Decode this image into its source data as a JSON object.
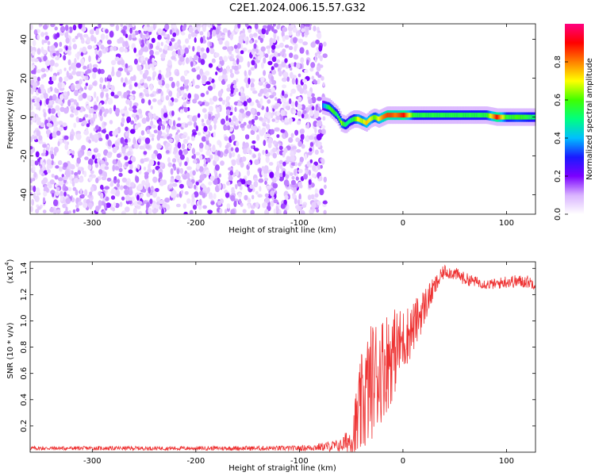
{
  "figure_title": "C2E1.2024.006.15.57.G32",
  "chart_data": [
    {
      "type": "heatmap",
      "xlabel": "Height of straight line (km)",
      "ylabel": "Frequency (Hz)",
      "xlim": [
        -360,
        128
      ],
      "ylim": [
        -50,
        48
      ],
      "x_ticks": [
        -300,
        -200,
        -100,
        0,
        100
      ],
      "y_ticks": [
        -40,
        -20,
        0,
        20,
        40
      ],
      "colorbar": {
        "label": "Normalized spectral amplitude",
        "range": [
          0,
          1
        ],
        "ticks": [
          0.0,
          0.2,
          0.4,
          0.6,
          0.8
        ],
        "tick_labels": [
          "0.0",
          "0.2",
          "0.4",
          "0.6",
          "0.8"
        ],
        "colormap": [
          "#ffffff",
          "#d9b3ff",
          "#7b00ff",
          "#1a1aff",
          "#00bfff",
          "#00ff80",
          "#40ff00",
          "#ffff00",
          "#ff8000",
          "#ff0000",
          "#ff0080"
        ]
      },
      "noise_region_x": [
        -360,
        -75
      ],
      "signal_track": {
        "x": [
          -78,
          -72,
          -68,
          -64,
          -60,
          -56,
          -52,
          -48,
          -44,
          -40,
          -36,
          -32,
          -28,
          -24,
          -20,
          -16,
          -12,
          -8,
          -4,
          0,
          10,
          20,
          30,
          40,
          50,
          60,
          70,
          80,
          90,
          100,
          110,
          120,
          128
        ],
        "freq": [
          6,
          5,
          3,
          1,
          -3,
          -4,
          -2,
          -1,
          -1,
          -2,
          -3,
          -1,
          0,
          -1,
          0,
          1,
          1,
          1,
          1,
          1,
          1,
          1,
          1,
          1,
          1,
          1,
          1,
          1,
          0,
          0,
          0,
          0,
          0
        ],
        "amplitude": [
          0.35,
          0.55,
          0.6,
          0.5,
          0.65,
          0.5,
          0.5,
          0.55,
          0.7,
          0.65,
          0.75,
          0.7,
          0.6,
          0.7,
          0.8,
          0.85,
          0.85,
          0.8,
          0.85,
          0.9,
          0.55,
          0.55,
          0.55,
          0.55,
          0.55,
          0.55,
          0.55,
          0.55,
          0.9,
          0.55,
          0.6,
          0.55,
          0.5
        ]
      }
    },
    {
      "type": "line",
      "xlabel": "Height of straight line (km)",
      "ylabel": "SNR (10 * v/v)",
      "scale_note": "(x10",
      "scale_exp": "4",
      "scale_close": ")",
      "xlim": [
        -360,
        128
      ],
      "ylim": [
        0,
        1.45
      ],
      "x_ticks": [
        -300,
        -200,
        -100,
        0,
        100
      ],
      "y_ticks": [
        0.2,
        0.4,
        0.6,
        0.8,
        1.0,
        1.2,
        1.4
      ],
      "y_tick_labels": [
        "0.2",
        "0.4",
        "0.6",
        "0.8",
        "1.0",
        "1.2",
        "1.4"
      ],
      "color": "#ee3333",
      "envelope": {
        "x": [
          -360,
          -300,
          -200,
          -100,
          -80,
          -60,
          -50,
          -45,
          -40,
          -35,
          -30,
          -25,
          -20,
          -15,
          -10,
          -5,
          0,
          10,
          20,
          30,
          40,
          50,
          60,
          70,
          80,
          90,
          100,
          110,
          120,
          128
        ],
        "mid": [
          0.03,
          0.03,
          0.03,
          0.03,
          0.04,
          0.05,
          0.1,
          0.2,
          0.35,
          0.45,
          0.55,
          0.6,
          0.65,
          0.7,
          0.75,
          0.8,
          0.85,
          0.95,
          1.1,
          1.25,
          1.38,
          1.36,
          1.32,
          1.3,
          1.28,
          1.28,
          1.3,
          1.3,
          1.3,
          1.28
        ],
        "amp": [
          0.015,
          0.015,
          0.015,
          0.02,
          0.03,
          0.05,
          0.12,
          0.3,
          0.4,
          0.45,
          0.45,
          0.45,
          0.4,
          0.4,
          0.35,
          0.3,
          0.25,
          0.2,
          0.15,
          0.08,
          0.05,
          0.05,
          0.05,
          0.04,
          0.04,
          0.04,
          0.05,
          0.05,
          0.05,
          0.04
        ]
      }
    }
  ]
}
